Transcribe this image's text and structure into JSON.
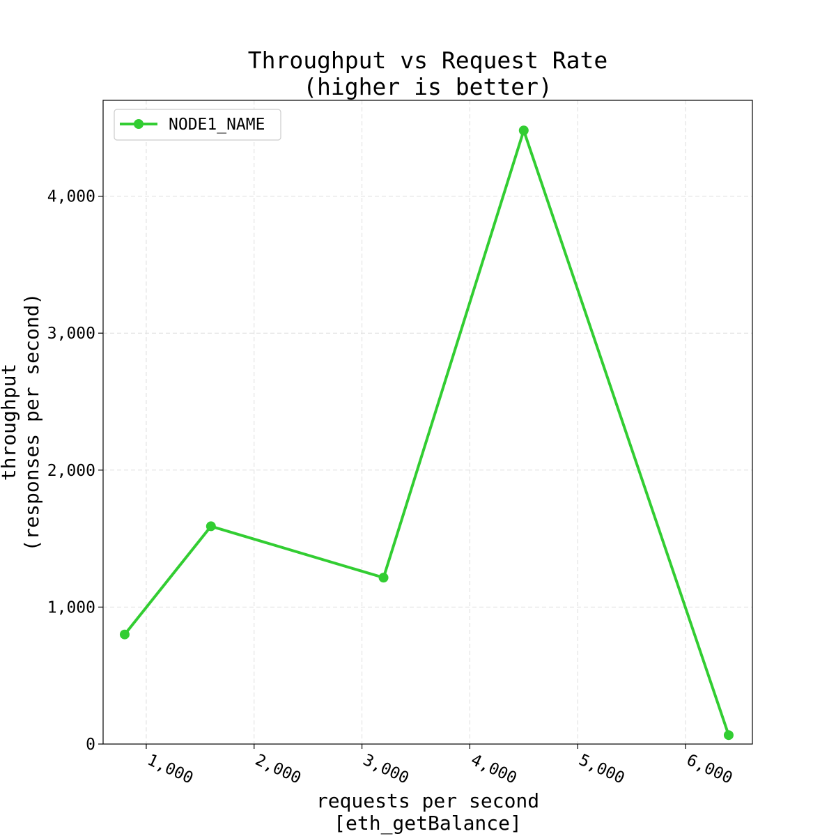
{
  "chart_data": {
    "type": "line",
    "title": [
      "Throughput vs Request Rate",
      "(higher is better)"
    ],
    "xlabel": [
      "requests per second",
      "[eth_getBalance]"
    ],
    "ylabel": [
      "throughput",
      "(responses per second)"
    ],
    "xlim": [
      600,
      6620
    ],
    "ylim": [
      0,
      4700
    ],
    "xticks": [
      1000,
      2000,
      3000,
      4000,
      5000,
      6000
    ],
    "xtick_labels": [
      "1,000",
      "2,000",
      "3,000",
      "4,000",
      "5,000",
      "6,000"
    ],
    "yticks": [
      0,
      1000,
      2000,
      3000,
      4000
    ],
    "ytick_labels": [
      "0",
      "1,000",
      "2,000",
      "3,000",
      "4,000"
    ],
    "grid": true,
    "legend_position": "top-left",
    "series": [
      {
        "name": "NODE1_NAME",
        "color": "#32cd32",
        "x": [
          800,
          1600,
          3200,
          4500,
          6400
        ],
        "y": [
          800,
          1590,
          1215,
          4480,
          65
        ]
      }
    ]
  }
}
